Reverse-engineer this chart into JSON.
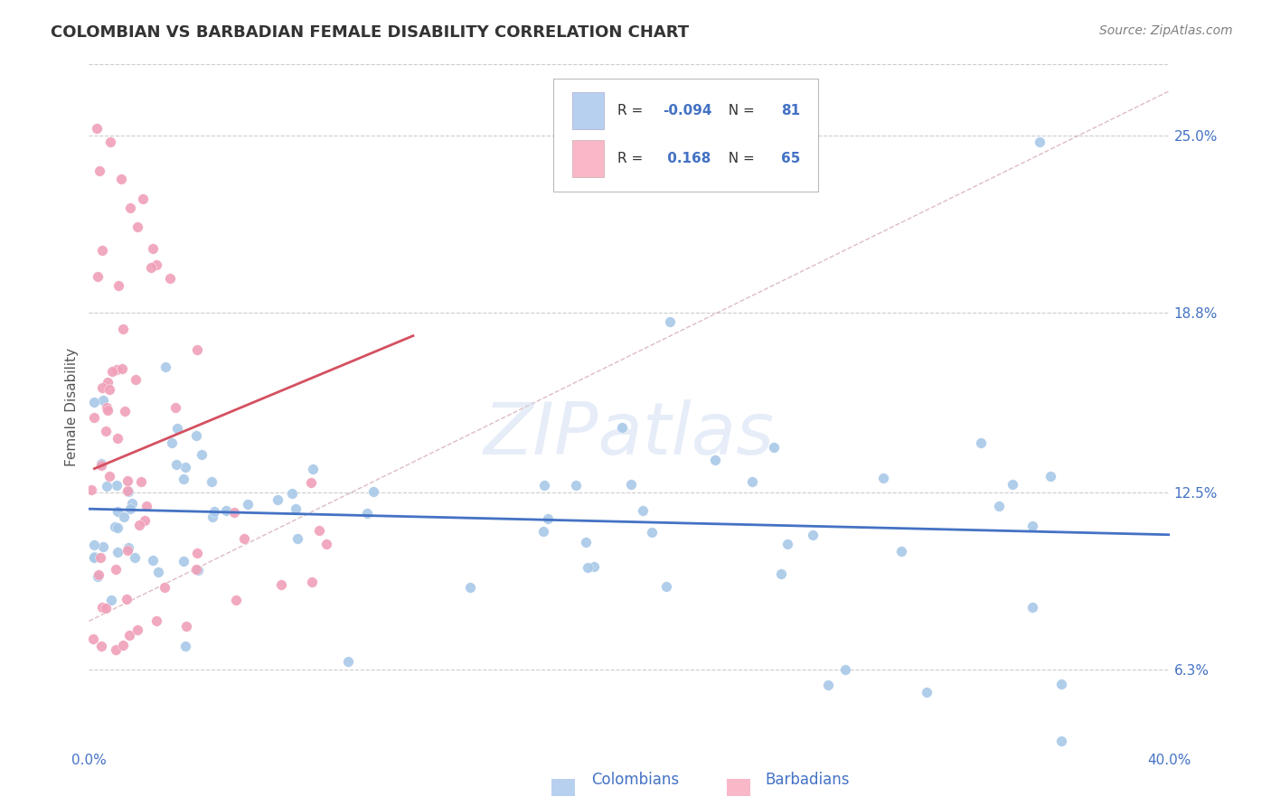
{
  "title": "COLOMBIAN VS BARBADIAN FEMALE DISABILITY CORRELATION CHART",
  "source": "Source: ZipAtlas.com",
  "ylabel": "Female Disability",
  "watermark": "ZIPatlas",
  "xlim": [
    0.0,
    0.4
  ],
  "ylim": [
    0.035,
    0.275
  ],
  "yticks_right": [
    0.063,
    0.125,
    0.188,
    0.25
  ],
  "ytick_labels_right": [
    "6.3%",
    "12.5%",
    "18.8%",
    "25.0%"
  ],
  "colombian_R": -0.094,
  "colombian_N": 81,
  "barbadian_R": 0.168,
  "barbadian_N": 65,
  "colombian_color": "#a8c8e8",
  "barbadian_color": "#f0a0b8",
  "colombian_line_color": "#4472c4",
  "barbadian_line_color": "#d45060",
  "legend_box_color_colombian": "#b8d0f0",
  "legend_box_color_barbadian": "#f8b8c8",
  "title_color": "#333333",
  "source_color": "#808080",
  "axis_label_color": "#4472c4",
  "tick_label_color": "#4472c4",
  "legend_r_color": "#333333",
  "legend_val_color": "#4472c4",
  "grid_color": "#cccccc",
  "background_color": "#ffffff",
  "diag_line_color": "#d0a0a8"
}
